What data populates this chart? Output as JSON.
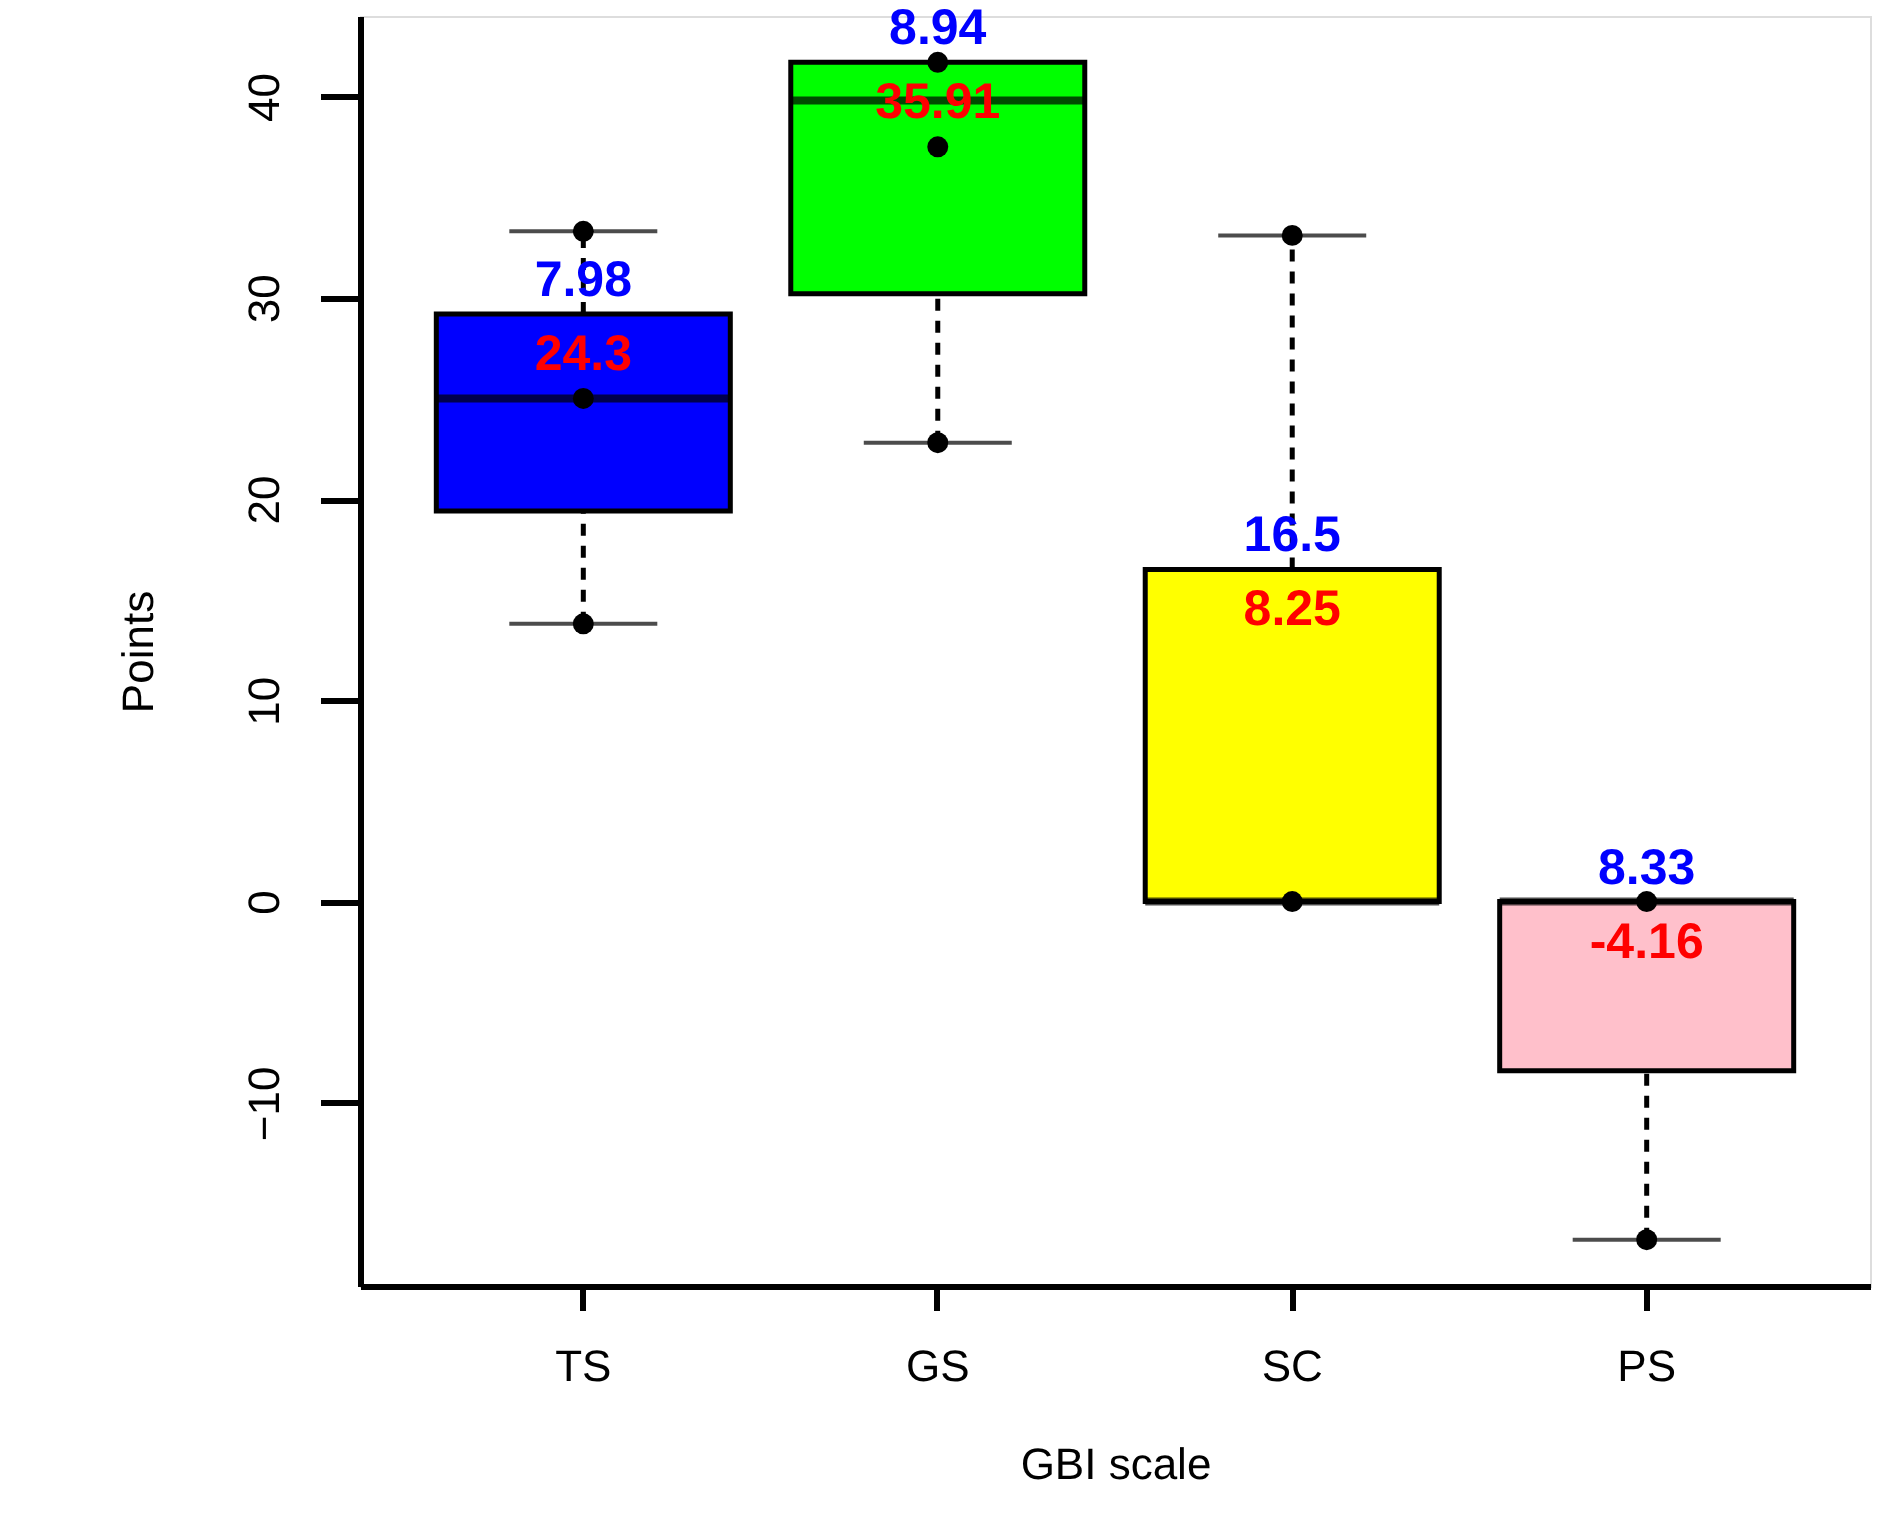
{
  "chart_data": {
    "type": "box",
    "xlabel": "GBI scale",
    "ylabel": "Points",
    "categories": [
      "TS",
      "GS",
      "SC",
      "PS"
    ],
    "boxes": [
      {
        "low": 13.8,
        "q1": 19.4,
        "median": 25.0,
        "q3": 29.2,
        "high": 33.3
      },
      {
        "low": 22.8,
        "q1": 30.2,
        "median": 39.8,
        "q3": 41.7,
        "high": 41.7
      },
      {
        "low": 0,
        "q1": 0,
        "median": 0,
        "q3": 16.5,
        "high": 33.1
      },
      {
        "low": -16.8,
        "q1": -8.4,
        "median": 0,
        "q3": 0,
        "high": 0
      }
    ],
    "colors": [
      "#0000ff",
      "#00ff00",
      "#ffff00",
      "#ffc0cb"
    ],
    "series": [
      {
        "type": "scatter",
        "color": "#000000",
        "x": [
          "TS",
          "TS",
          "TS",
          "GS",
          "GS",
          "GS",
          "SC",
          "SC",
          "PS",
          "PS"
        ],
        "values": [
          33.3,
          25.0,
          13.8,
          41.7,
          37.5,
          22.8,
          33.1,
          0,
          0,
          -16.8
        ]
      }
    ],
    "marker": "circle",
    "annotations": [
      "7.98",
      "24.3",
      "8.94",
      "35.91",
      "16.5",
      "8.25",
      "8.33",
      "-4.16"
    ],
    "ylim": [
      -19.1,
      44.0
    ],
    "yticks": [
      -10,
      0,
      10,
      20,
      30,
      40
    ],
    "grid": false
  }
}
